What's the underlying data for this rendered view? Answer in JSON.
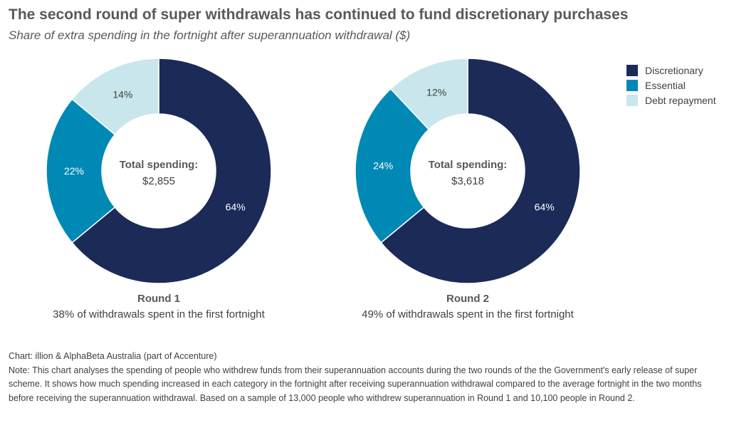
{
  "title": "The second round of super withdrawals has continued to fund discretionary purchases",
  "subtitle": "Share of extra spending in the fortnight after superannuation withdrawal ($)",
  "legend": [
    {
      "label": "Discretionary",
      "color": "#1b2a57"
    },
    {
      "label": "Essential",
      "color": "#0089b5"
    },
    {
      "label": "Debt repayment",
      "color": "#c9e6ec"
    }
  ],
  "chart_data": [
    {
      "type": "pie",
      "title": "Round 1",
      "subtitle": "38% of withdrawals spent in the first fortnight",
      "center_label": "Total spending:",
      "center_value": "$2,855",
      "slices": [
        {
          "name": "Discretionary",
          "value": 64,
          "label": "64%",
          "color": "#1b2a57"
        },
        {
          "name": "Essential",
          "value": 22,
          "label": "22%",
          "color": "#0089b5"
        },
        {
          "name": "Debt repayment",
          "value": 14,
          "label": "14%",
          "color": "#c9e6ec"
        }
      ]
    },
    {
      "type": "pie",
      "title": "Round 2",
      "subtitle": "49% of withdrawals spent in the first fortnight",
      "center_label": "Total spending:",
      "center_value": "$3,618",
      "slices": [
        {
          "name": "Discretionary",
          "value": 64,
          "label": "64%",
          "color": "#1b2a57"
        },
        {
          "name": "Essential",
          "value": 24,
          "label": "24%",
          "color": "#0089b5"
        },
        {
          "name": "Debt repayment",
          "value": 12,
          "label": "12%",
          "color": "#c9e6ec"
        }
      ]
    }
  ],
  "footer": {
    "source": "Chart: illion & AlphaBeta Australia (part of Accenture)",
    "note": "Note: This chart analyses the spending of people who withdrew funds from their superannuation accounts during the two rounds of the the Government's early release of super scheme. It shows how much spending increased in each category in the fortnight after receiving superannuation withdrawal compared to the average fortnight in the two months before receiving the superannuation withdrawal. Based on a sample of 13,000 people who withdrew superannuation in Round 1 and 10,100 people in Round 2."
  }
}
